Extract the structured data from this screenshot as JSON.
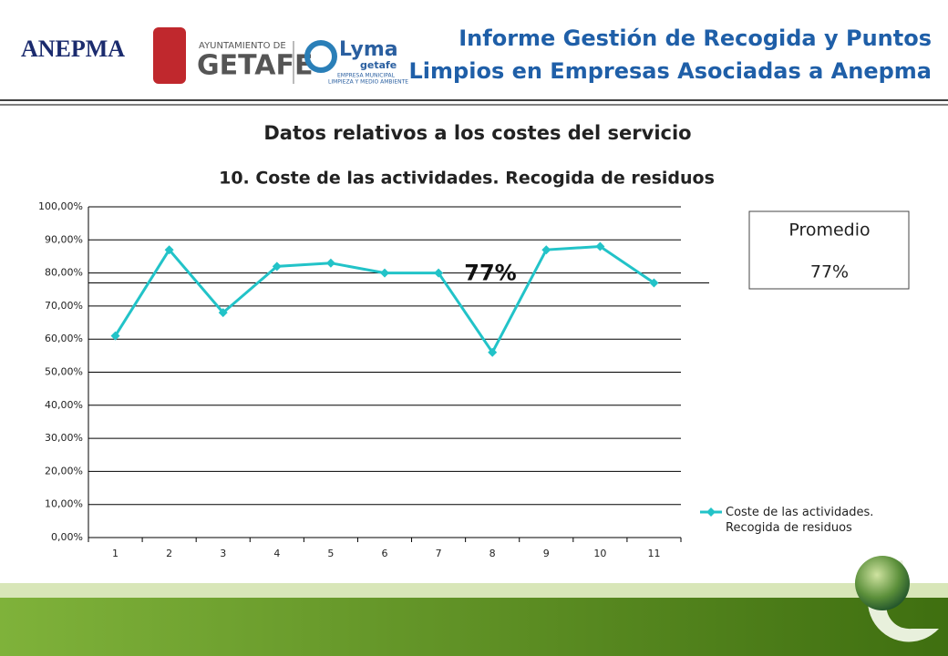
{
  "header": {
    "title_line1": "Informe Gestión de Recogida y Puntos",
    "title_line2": "Limpios en Empresas Asociadas a Anepma",
    "logos": {
      "anepma": "ANEPMA",
      "ayto": "AYUNTAMIENTO DE",
      "getafe": "GETAFE",
      "lyma": "Lyma",
      "lyma_sub": "getafe",
      "lyma_l1": "EMPRESA MUNICIPAL",
      "lyma_l2": "LIMPIEZA Y MEDIO AMBIENTE"
    }
  },
  "section_title": "Datos relativos a los costes del servicio",
  "summary_box": {
    "label": "Promedio",
    "value": "77%"
  },
  "chart_data": {
    "type": "line",
    "title": "10. Coste de las actividades. Recogida de residuos",
    "categories": [
      "1",
      "2",
      "3",
      "4",
      "5",
      "6",
      "7",
      "8",
      "9",
      "10",
      "11"
    ],
    "series": [
      {
        "name": "Coste de las actividades. Recogida de residuos",
        "color": "#22c3c8",
        "values": [
          61,
          87,
          68,
          82,
          83,
          80,
          80,
          56,
          87,
          88,
          77
        ]
      }
    ],
    "ylim": [
      0,
      100
    ],
    "yticks": [
      {
        "value": 0,
        "label": "0,00%"
      },
      {
        "value": 10,
        "label": "10,00%"
      },
      {
        "value": 20,
        "label": "20,00%"
      },
      {
        "value": 30,
        "label": "30,00%"
      },
      {
        "value": 40,
        "label": "40,00%"
      },
      {
        "value": 50,
        "label": "50,00%"
      },
      {
        "value": 60,
        "label": "60,00%"
      },
      {
        "value": 70,
        "label": "70,00%"
      },
      {
        "value": 80,
        "label": "80,00%"
      },
      {
        "value": 90,
        "label": "90,00%"
      },
      {
        "value": 100,
        "label": "100,00%"
      }
    ],
    "average_line": {
      "value": 77,
      "label": "77%"
    },
    "grid": true,
    "legend": "right"
  }
}
